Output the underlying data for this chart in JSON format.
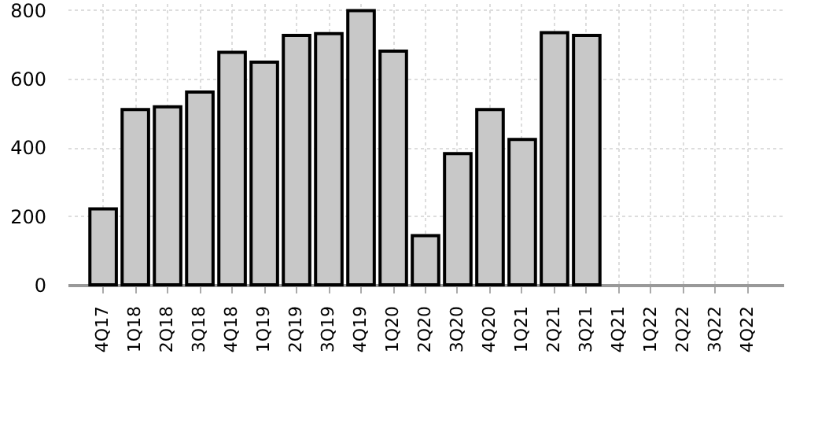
{
  "chart_data": {
    "type": "bar",
    "categories": [
      "4Q17",
      "1Q18",
      "2Q18",
      "3Q18",
      "4Q18",
      "1Q19",
      "2Q19",
      "3Q19",
      "4Q19",
      "1Q20",
      "2Q20",
      "3Q20",
      "4Q20",
      "1Q21",
      "2Q21",
      "3Q21",
      "4Q21",
      "1Q22",
      "2Q22",
      "3Q22",
      "4Q22"
    ],
    "values": [
      221,
      510,
      518,
      561,
      677,
      648,
      726,
      731,
      798,
      680,
      143,
      382,
      510,
      423,
      734,
      726,
      null,
      null,
      null,
      null,
      null
    ],
    "color": "#c8c8c8",
    "ylim": [
      0,
      820
    ],
    "yticks": [
      0,
      200,
      400,
      600,
      800
    ],
    "grid": true
  }
}
